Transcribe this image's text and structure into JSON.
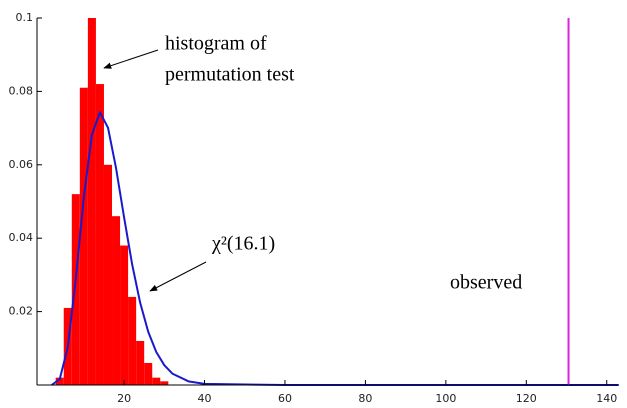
{
  "chart_data": {
    "type": "histogram",
    "bins": [
      3,
      5,
      7,
      9,
      11,
      13,
      15,
      17,
      19,
      21,
      23,
      25,
      27,
      29,
      31
    ],
    "values": [
      0.002,
      0.021,
      0.052,
      0.081,
      0.1,
      0.082,
      0.06,
      0.046,
      0.038,
      0.024,
      0.012,
      0.006,
      0.002,
      0.001
    ],
    "color": "#ff0000",
    "curve": {
      "x": [
        2,
        4,
        6,
        8,
        10,
        12,
        14,
        16,
        18,
        20,
        22,
        24,
        26,
        28,
        30,
        32,
        36,
        40,
        60,
        143
      ],
      "y": [
        0.0,
        0.0016,
        0.0103,
        0.0289,
        0.0512,
        0.0682,
        0.0743,
        0.0701,
        0.0591,
        0.0457,
        0.0329,
        0.0224,
        0.0145,
        0.009,
        0.0054,
        0.0031,
        0.001,
        0.0003,
        0,
        0
      ],
      "color": "#1a1acc"
    },
    "observed": {
      "x": 130.5,
      "color": "#e020e0",
      "label": "observed"
    },
    "annotations": {
      "histogram": [
        "histogram of",
        "permutation test"
      ],
      "curve": "χ²(16.1)"
    },
    "xlim": [
      -1.65,
      142.8
    ],
    "ylim": [
      0,
      0.1
    ],
    "xticks": [
      20,
      40,
      60,
      80,
      100,
      120,
      140
    ],
    "yticks": [
      0.02,
      0.04,
      0.06,
      0.08,
      0.1
    ]
  }
}
